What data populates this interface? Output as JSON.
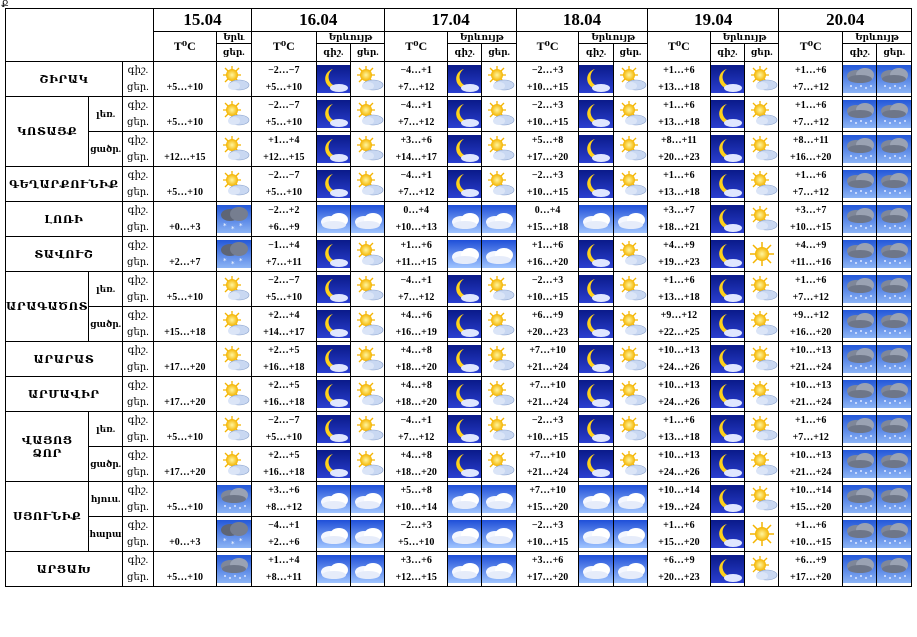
{
  "corner_mark": "Ք",
  "headers": {
    "temp": "T⁰C",
    "weather": "Երևույթ",
    "weather_short": "Երև",
    "night": "գիշ.",
    "day": "ցեր."
  },
  "dates": [
    "15.04",
    "16.04",
    "17.04",
    "18.04",
    "19.04",
    "20.04"
  ],
  "regions": {
    "shirak": "ՇԻՐԱԿ",
    "kotayk": "ԿՈՏԱՅՔ",
    "gegharkunik": "ԳԵՂԱՐՔՈՒՆԻՔ",
    "lori": "ԼՈՌԻ",
    "tavush": "ՏԱՎՈՒՇ",
    "aragatsotn": "ԱՐԱԳԱԾՈՏՆ",
    "ararat": "ԱՐԱՐԱՏ",
    "armavir": "ԱՐՄԱՎԻՐ",
    "vayots_line1": "ՎԱՅՈՑ",
    "vayots_line2": "ՁՈՐ",
    "syunik": "ՍՅՈՒՆԻՔ",
    "artsakh": "ԱՐՑԱԽ"
  },
  "subs": {
    "mountain": "լեռ.",
    "lowland": "ցածր.",
    "north": "հյուս.",
    "south": "հարավ."
  },
  "rows": [
    {
      "d15": "+5…+10",
      "n16": "−2…−7",
      "d16": "+5…+10",
      "n17": "−4…+1",
      "d17": "+7…+12",
      "n18": "−2…+3",
      "d18": "+10…+15",
      "n19": "+1…+6",
      "d19": "+13…+18",
      "n20": "+1…+6",
      "d20": "+7…+12",
      "icons": [
        "sun_cloud",
        "moon",
        "sun_cloud",
        "moon",
        "sun_cloud",
        "moon",
        "sun_cloud",
        "moon",
        "sun_cloud",
        "rain_cloud",
        "rain_cloud"
      ]
    },
    {
      "d15": "+5…+10",
      "n16": "−2…−7",
      "d16": "+5…+10",
      "n17": "−4…+1",
      "d17": "+7…+12",
      "n18": "−2…+3",
      "d18": "+10…+15",
      "n19": "+1…+6",
      "d19": "+13…+18",
      "n20": "+1…+6",
      "d20": "+7…+12",
      "icons": [
        "sun_cloud",
        "moon",
        "sun_cloud",
        "moon",
        "sun_cloud",
        "moon",
        "sun_cloud",
        "moon",
        "sun_cloud",
        "rain_cloud",
        "rain_cloud"
      ]
    },
    {
      "d15": "+12…+15",
      "n16": "+1…+4",
      "d16": "+12…+15",
      "n17": "+3…+6",
      "d17": "+14…+17",
      "n18": "+5…+8",
      "d18": "+17…+20",
      "n19": "+8…+11",
      "d19": "+20…+23",
      "n20": "+8…+11",
      "d20": "+16…+20",
      "icons": [
        "sun_cloud",
        "moon",
        "sun_cloud",
        "moon",
        "sun_cloud",
        "moon",
        "sun_cloud",
        "moon",
        "sun_cloud",
        "rain_cloud",
        "rain_cloud"
      ]
    },
    {
      "d15": "+5…+10",
      "n16": "−2…−7",
      "d16": "+5…+10",
      "n17": "−4…+1",
      "d17": "+7…+12",
      "n18": "−2…+3",
      "d18": "+10…+15",
      "n19": "+1…+6",
      "d19": "+13…+18",
      "n20": "+1…+6",
      "d20": "+7…+12",
      "icons": [
        "sun_cloud",
        "moon",
        "sun_cloud",
        "moon",
        "sun_cloud",
        "moon",
        "sun_cloud",
        "moon",
        "sun_cloud",
        "rain_cloud",
        "rain_cloud"
      ]
    },
    {
      "d15": "+0…+3",
      "n16": "−2…+2",
      "d16": "+6…+9",
      "n17": "0…+4",
      "d17": "+10…+13",
      "n18": "0…+4",
      "d18": "+15…+18",
      "n19": "+3…+7",
      "d19": "+18…+21",
      "n20": "+3…+7",
      "d20": "+10…+15",
      "icons": [
        "snow_cloud",
        "cloud",
        "cloud",
        "cloud",
        "cloud",
        "cloud",
        "cloud",
        "moon",
        "sun_cloud",
        "rain_cloud",
        "rain_cloud"
      ]
    },
    {
      "d15": "+2…+7",
      "n16": "−1…+4",
      "d16": "+7…+11",
      "n17": "+1…+6",
      "d17": "+11…+15",
      "n18": "+1…+6",
      "d18": "+16…+20",
      "n19": "+4…+9",
      "d19": "+19…+23",
      "n20": "+4…+9",
      "d20": "+11…+16",
      "icons": [
        "snow_cloud",
        "moon",
        "sun_cloud",
        "cloud",
        "cloud",
        "moon",
        "sun_cloud",
        "moon",
        "sun",
        "rain_cloud",
        "rain_cloud"
      ]
    },
    {
      "d15": "+5…+10",
      "n16": "−2…−7",
      "d16": "+5…+10",
      "n17": "−4…+1",
      "d17": "+7…+12",
      "n18": "−2…+3",
      "d18": "+10…+15",
      "n19": "+1…+6",
      "d19": "+13…+18",
      "n20": "+1…+6",
      "d20": "+7…+12",
      "icons": [
        "sun_cloud",
        "moon",
        "sun_cloud",
        "moon",
        "sun_cloud",
        "moon",
        "sun_cloud",
        "moon",
        "sun_cloud",
        "rain_cloud",
        "rain_cloud"
      ]
    },
    {
      "d15": "+15…+18",
      "n16": "+2…+4",
      "d16": "+14…+17",
      "n17": "+4…+6",
      "d17": "+16…+19",
      "n18": "+6…+9",
      "d18": "+20…+23",
      "n19": "+9…+12",
      "d19": "+22…+25",
      "n20": "+9…+12",
      "d20": "+16…+20",
      "icons": [
        "sun_cloud",
        "moon",
        "sun_cloud",
        "moon",
        "sun_cloud",
        "moon",
        "sun_cloud",
        "moon",
        "sun_cloud",
        "rain_cloud",
        "rain_cloud"
      ]
    },
    {
      "d15": "+17…+20",
      "n16": "+2…+5",
      "d16": "+16…+18",
      "n17": "+4…+8",
      "d17": "+18…+20",
      "n18": "+7…+10",
      "d18": "+21…+24",
      "n19": "+10…+13",
      "d19": "+24…+26",
      "n20": "+10…+13",
      "d20": "+21…+24",
      "icons": [
        "sun_cloud",
        "moon",
        "sun_cloud",
        "moon",
        "sun_cloud",
        "moon",
        "sun_cloud",
        "moon",
        "sun_cloud",
        "rain_cloud",
        "rain_cloud"
      ]
    },
    {
      "d15": "+17…+20",
      "n16": "+2…+5",
      "d16": "+16…+18",
      "n17": "+4…+8",
      "d17": "+18…+20",
      "n18": "+7…+10",
      "d18": "+21…+24",
      "n19": "+10…+13",
      "d19": "+24…+26",
      "n20": "+10…+13",
      "d20": "+21…+24",
      "icons": [
        "sun_cloud",
        "moon",
        "sun_cloud",
        "moon",
        "sun_cloud",
        "moon",
        "sun_cloud",
        "moon",
        "sun_cloud",
        "rain_cloud",
        "rain_cloud"
      ]
    },
    {
      "d15": "+5…+10",
      "n16": "−2…−7",
      "d16": "+5…+10",
      "n17": "−4…+1",
      "d17": "+7…+12",
      "n18": "−2…+3",
      "d18": "+10…+15",
      "n19": "+1…+6",
      "d19": "+13…+18",
      "n20": "+1…+6",
      "d20": "+7…+12",
      "icons": [
        "sun_cloud",
        "moon",
        "sun_cloud",
        "moon",
        "sun_cloud",
        "moon",
        "sun_cloud",
        "moon",
        "sun_cloud",
        "rain_cloud",
        "rain_cloud"
      ]
    },
    {
      "d15": "+17…+20",
      "n16": "+2…+5",
      "d16": "+16…+18",
      "n17": "+4…+8",
      "d17": "+18…+20",
      "n18": "+7…+10",
      "d18": "+21…+24",
      "n19": "+10…+13",
      "d19": "+24…+26",
      "n20": "+10…+13",
      "d20": "+21…+24",
      "icons": [
        "sun_cloud",
        "moon",
        "sun_cloud",
        "moon",
        "sun_cloud",
        "moon",
        "sun_cloud",
        "moon",
        "sun_cloud",
        "rain_cloud",
        "rain_cloud"
      ]
    },
    {
      "d15": "+5…+10",
      "n16": "+3…+6",
      "d16": "+8…+12",
      "n17": "+5…+8",
      "d17": "+10…+14",
      "n18": "+7…+10",
      "d18": "+15…+20",
      "n19": "+10…+14",
      "d19": "+19…+24",
      "n20": "+10…+14",
      "d20": "+15…+20",
      "icons": [
        "rain_cloud",
        "cloud",
        "cloud",
        "cloud",
        "cloud",
        "cloud",
        "cloud",
        "moon",
        "sun_cloud",
        "rain_cloud",
        "rain_cloud"
      ]
    },
    {
      "d15": "+0…+3",
      "n16": "−4…+1",
      "d16": "+2…+6",
      "n17": "−2…+3",
      "d17": "+5…+10",
      "n18": "−2…+3",
      "d18": "+10…+15",
      "n19": "+1…+6",
      "d19": "+15…+20",
      "n20": "+1…+6",
      "d20": "+10…+15",
      "icons": [
        "snow_cloud",
        "cloud",
        "cloud",
        "cloud",
        "cloud",
        "cloud",
        "cloud",
        "moon",
        "sun",
        "rain_cloud",
        "rain_cloud"
      ]
    },
    {
      "d15": "+5…+10",
      "n16": "+1…+4",
      "d16": "+8…+11",
      "n17": "+3…+6",
      "d17": "+12…+15",
      "n18": "+3…+6",
      "d18": "+17…+20",
      "n19": "+6…+9",
      "d19": "+20…+23",
      "n20": "+6…+9",
      "d20": "+17…+20",
      "icons": [
        "rain_cloud",
        "cloud",
        "cloud",
        "cloud",
        "cloud",
        "cloud",
        "cloud",
        "moon",
        "sun_cloud",
        "rain_cloud",
        "rain_cloud"
      ]
    }
  ]
}
